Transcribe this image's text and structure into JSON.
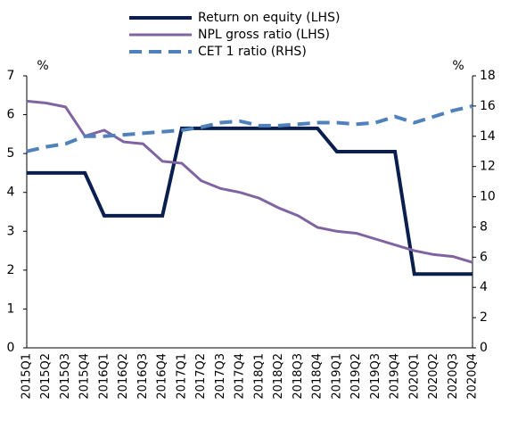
{
  "chart_data": {
    "type": "line",
    "ylabel": "%",
    "y2label": "%",
    "categories": [
      "2015Q1",
      "2015Q2",
      "2015Q3",
      "2015Q4",
      "2016Q1",
      "2016Q2",
      "2016Q3",
      "2016Q4",
      "2017Q1",
      "2017Q2",
      "2017Q3",
      "2017Q4",
      "2018Q1",
      "2018Q2",
      "2018Q3",
      "2018Q4",
      "2019Q1",
      "2019Q2",
      "2019Q3",
      "2019Q4",
      "2020Q1",
      "2020Q2",
      "2020Q3",
      "2020Q4"
    ],
    "series": [
      {
        "name": "Return on equity (LHS)",
        "color": "#0b1f4e",
        "dash": false,
        "width": 4,
        "values": [
          4.5,
          4.5,
          4.5,
          4.5,
          3.4,
          3.4,
          3.4,
          3.4,
          5.65,
          5.65,
          5.65,
          5.65,
          5.65,
          5.65,
          5.65,
          5.65,
          5.05,
          5.05,
          5.05,
          5.05,
          1.9,
          1.9,
          1.9,
          1.9
        ]
      },
      {
        "name": "NPL gross ratio (LHS)",
        "color": "#8064a2",
        "dash": false,
        "width": 3,
        "values": [
          6.35,
          6.3,
          6.2,
          5.45,
          5.6,
          5.3,
          5.25,
          4.8,
          4.75,
          4.3,
          4.1,
          4.0,
          3.85,
          3.6,
          3.4,
          3.1,
          3.0,
          2.95,
          2.8,
          2.65,
          2.5,
          2.4,
          2.35,
          2.2
        ]
      },
      {
        "name": "CET 1 ratio (RHS)",
        "color": "#4f81bd",
        "dash": true,
        "width": 4,
        "axis": "y2",
        "values": [
          13.0,
          13.3,
          13.5,
          14.0,
          14.0,
          14.1,
          14.2,
          14.3,
          14.4,
          14.6,
          14.9,
          15.0,
          14.7,
          14.7,
          14.8,
          14.9,
          14.9,
          14.8,
          14.9,
          15.3,
          14.9,
          15.3,
          15.7,
          16.0
        ]
      }
    ],
    "ylim": [
      0,
      7
    ],
    "yticks": [
      0,
      1,
      2,
      3,
      4,
      5,
      6,
      7
    ],
    "y2lim": [
      0,
      18
    ],
    "y2ticks": [
      0,
      2,
      4,
      6,
      8,
      10,
      12,
      14,
      16,
      18
    ],
    "grid": false
  }
}
